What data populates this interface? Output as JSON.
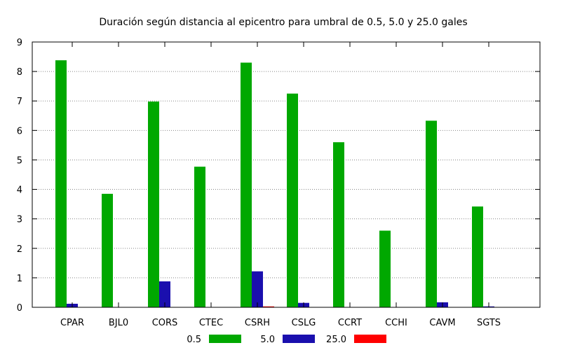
{
  "chart_data": {
    "type": "bar",
    "title": "Duración según distancia al epicentro para umbral de 0.5, 5.0 y 25.0 gales",
    "xlabel": "",
    "ylabel": "",
    "ylim": [
      0,
      9
    ],
    "yticks": [
      0,
      1,
      2,
      3,
      4,
      5,
      6,
      7,
      8,
      9
    ],
    "grid": "y-dotted",
    "legend_position": "bottom-center",
    "categories": [
      "CPAR",
      "BJL0",
      "CORS",
      "CTEC",
      "CSRH",
      "CSLG",
      "CCRT",
      "CCHI",
      "CAVM",
      "SGTS"
    ],
    "series": [
      {
        "name": "0.5",
        "color": "#00a800",
        "values": [
          8.38,
          3.85,
          6.98,
          4.77,
          8.3,
          7.25,
          5.6,
          2.6,
          6.33,
          3.42
        ]
      },
      {
        "name": "5.0",
        "color": "#1a0fae",
        "values": [
          0.12,
          0.0,
          0.88,
          0.0,
          1.22,
          0.15,
          0.0,
          0.0,
          0.17,
          0.03
        ]
      },
      {
        "name": "25.0",
        "color": "#ff0000",
        "values": [
          0.0,
          0.0,
          0.0,
          0.0,
          0.03,
          0.0,
          0.0,
          0.0,
          0.0,
          0.0
        ]
      }
    ]
  }
}
